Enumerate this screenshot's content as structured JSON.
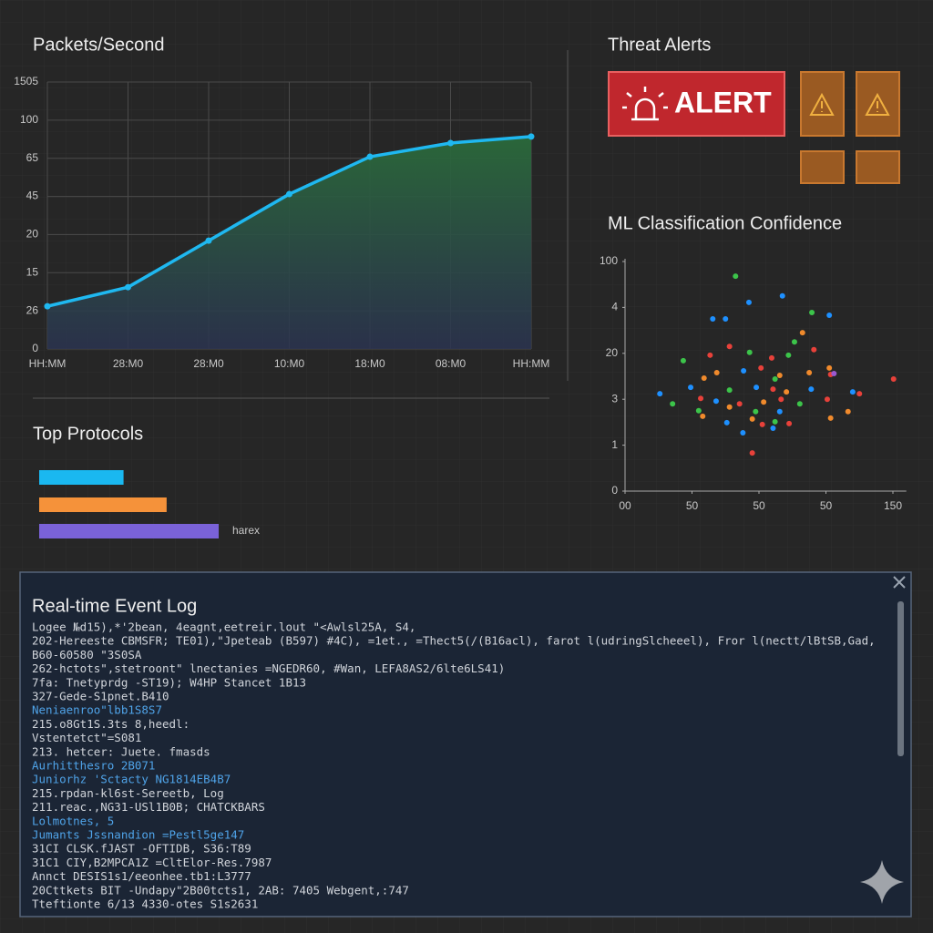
{
  "chart_data": [
    {
      "type": "line",
      "title": "Packets/Second",
      "categories": [
        "HH:MM",
        "28:M0",
        "28:M0",
        "10:M0",
        "18:M0",
        "08:M0",
        "HH:MM"
      ],
      "values": [
        1.12,
        1.62,
        2.84,
        4.06,
        5.04,
        5.4,
        5.57
      ],
      "color": "#1fb8f0",
      "ylim": [
        0,
        7
      ],
      "yticks": [
        0,
        {
          "value": 1,
          "label": "26"
        },
        {
          "value": 2,
          "label": "15"
        },
        {
          "value": 3,
          "label": "20"
        },
        {
          "value": 4,
          "label": "45"
        },
        {
          "value": 5,
          "label": "65"
        },
        {
          "value": 6,
          "label": "100"
        },
        {
          "value": 7,
          "label": "1505"
        }
      ],
      "grid": true
    },
    {
      "type": "bar",
      "title": "Top Protocols",
      "categories": [
        null,
        null,
        "harex"
      ],
      "values": [
        47,
        71,
        100
      ],
      "colors": [
        "#1ab8f0",
        "#f5923a",
        "#7a62d8"
      ],
      "xlim": [
        0,
        100
      ]
    },
    {
      "type": "scatter",
      "title": "ML Classification Confidence",
      "x": [
        1.65,
        2.35,
        1.85,
        1.31,
        1.5,
        2.79,
        3.05,
        2.65,
        2.53,
        1.56,
        0.87,
        1.27,
        1.86,
        2.19,
        2.44,
        2.82,
        1.37,
        1.77,
        2.03,
        2.31,
        2.75,
        3.07,
        3.05,
        1.18,
        0.98,
        1.56,
        1.96,
        2.21,
        2.41,
        2.78,
        3.4,
        3.5,
        4.01,
        0.52,
        0.71,
        1.13,
        1.36,
        1.71,
        2.07,
        2.33,
        2.61,
        3.02,
        1.1,
        1.56,
        1.95,
        2.31,
        1.16,
        1.52,
        1.9,
        2.24,
        2.45,
        3.07,
        3.33,
        1.76,
        2.05,
        2.21,
        1.9,
        3.12,
        2.24
      ],
      "y": [
        4.68,
        4.25,
        4.11,
        3.75,
        3.75,
        3.89,
        3.83,
        3.45,
        3.25,
        3.15,
        2.84,
        2.96,
        3.02,
        2.9,
        2.96,
        3.08,
        2.58,
        2.62,
        2.68,
        2.52,
        2.58,
        2.54,
        2.68,
        2.46,
        2.26,
        2.2,
        2.26,
        2.22,
        2.16,
        2.22,
        2.16,
        2.12,
        2.44,
        2.12,
        1.9,
        2.02,
        1.96,
        1.9,
        1.94,
        2.0,
        1.9,
        2.0,
        1.75,
        1.83,
        1.73,
        1.73,
        1.63,
        1.49,
        1.57,
        1.51,
        1.47,
        1.59,
        1.73,
        1.27,
        1.45,
        1.37,
        0.83,
        2.56,
        2.44
      ],
      "colors": [
        "#3cc44a",
        "#1e90ff",
        "#1e90ff",
        "#1e90ff",
        "#1e90ff",
        "#3cc44a",
        "#1e90ff",
        "#f08a2c",
        "#3cc44a",
        "#e8413a",
        "#3cc44a",
        "#e8413a",
        "#3cc44a",
        "#e8413a",
        "#3cc44a",
        "#e8413a",
        "#f08a2c",
        "#1e90ff",
        "#e8413a",
        "#f08a2c",
        "#f08a2c",
        "#e8413a",
        "#f08a2c",
        "#f08a2c",
        "#1e90ff",
        "#3cc44a",
        "#1e90ff",
        "#e8413a",
        "#f08a2c",
        "#1e90ff",
        "#1e90ff",
        "#e8413a",
        "#e8413a",
        "#1e90ff",
        "#3cc44a",
        "#e8413a",
        "#1e90ff",
        "#e8413a",
        "#f08a2c",
        "#e8413a",
        "#3cc44a",
        "#e8413a",
        "#3cc44a",
        "#f08a2c",
        "#3cc44a",
        "#1e90ff",
        "#f08a2c",
        "#1e90ff",
        "#f08a2c",
        "#3cc44a",
        "#e8413a",
        "#f08a2c",
        "#f08a2c",
        "#1e90ff",
        "#e8413a",
        "#1e90ff",
        "#e8413a",
        "#9b59d0",
        "#3cc44a"
      ],
      "xlim": [
        0,
        4.2
      ],
      "ylim": [
        0,
        5
      ],
      "xticks": [
        {
          "value": 0,
          "label": "00"
        },
        {
          "value": 1,
          "label": "50"
        },
        {
          "value": 2,
          "label": "50"
        },
        {
          "value": 3,
          "label": "50"
        },
        {
          "value": 4,
          "label": "150"
        }
      ],
      "yticks": [
        0,
        1,
        {
          "value": 2,
          "label": "3"
        },
        {
          "value": 3,
          "label": "20"
        },
        4,
        {
          "value": 5,
          "label": "100"
        }
      ]
    }
  ],
  "alerts": {
    "title": "Threat Alerts",
    "button": "ALERT"
  },
  "event_log": {
    "title": "Real-time Event Log",
    "lines": [
      {
        "text": "Logee №d15),*'2bean, 4eagnt,eetreir.lout \"<Awlsl25A, S4,",
        "color": "#d0d4da"
      },
      {
        "text": "202-Hereeste CBMSFR; TE01),\"Jpeteab (B597) #4C), =1et., =Thect5(/(B16acl), farot l(udringSlcheeel), Fror l(nectt/lBtSB,Gad,",
        "color": "#d0d4da"
      },
      {
        "text": "B60-60580 \"3S0SA",
        "color": "#d0d4da"
      },
      {
        "text": "262-hctots\",stetroont\" lnectanies =NGEDR60, #Wan, LEFA8AS2/6lte6LS41)",
        "color": "#d0d4da"
      },
      {
        "text": "7fa: Tnetyprdg -ST19); W4HP Stancet 1B13",
        "color": "#d0d4da"
      },
      {
        "text": "327-Gede-S1pnet.B410",
        "color": "#d0d4da"
      },
      {
        "text": "Neniaenroo\"lbb1S8S7",
        "color": "#4fa3e8"
      },
      {
        "text": "215.o8Gt1S.3ts 8,heedl:",
        "color": "#d0d4da"
      },
      {
        "text": "Vstentetct\"=S081",
        "color": "#d0d4da"
      },
      {
        "text": "213. hetcer: Juete. fmasds",
        "color": "#d0d4da"
      },
      {
        "text": "Aurhitthesro 2B071",
        "color": "#4fa3e8"
      },
      {
        "text": "Juniorhz 'Sctacty NG1814EB4B7",
        "color": "#4fa3e8"
      },
      {
        "text": "215.rpdan-kl6st-Sereetb, Log",
        "color": "#d0d4da"
      },
      {
        "text": "211.reac.,NG31-USl1B0B; CHATCKBARS",
        "color": "#d0d4da"
      },
      {
        "text": "Lolmotnes, 5",
        "color": "#4fa3e8"
      },
      {
        "text": "Jumants Jssnandion =Pestl5ge147",
        "color": "#4fa3e8"
      },
      {
        "text": "31CI CLSK.fJAST -OFTIDB, S36:T89",
        "color": "#d0d4da"
      },
      {
        "text": "31C1 CIY,B2MPCA1Z =CltElor-Res.7987",
        "color": "#d0d4da"
      },
      {
        "text": "Annct DESIS1s1/eeonhee.tb1:L3777",
        "color": "#d0d4da"
      },
      {
        "text": "20Cttkets BIT -Undapy\"2B00tcts1, 2AB: 7405 Webgent,:747",
        "color": "#d0d4da"
      },
      {
        "text": "Tteftionte 6/13 4330-otes S1s2631",
        "color": "#d0d4da"
      }
    ]
  }
}
